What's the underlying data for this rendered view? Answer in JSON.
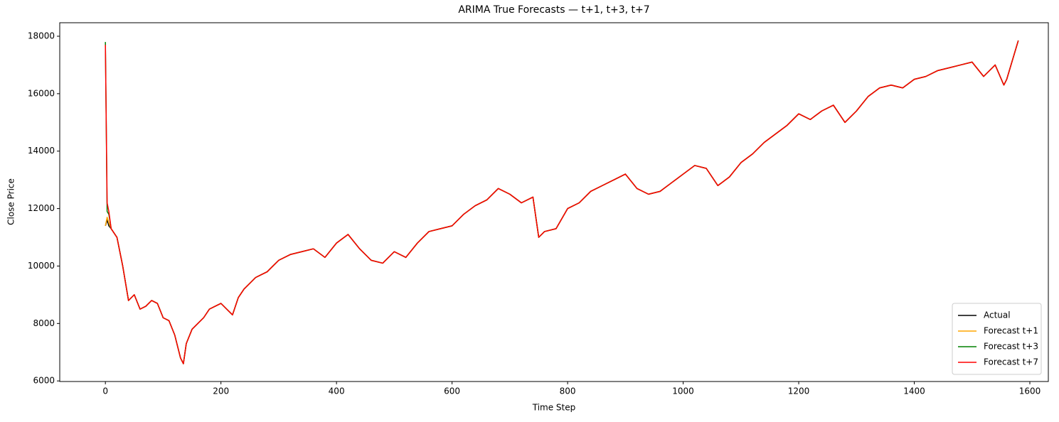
{
  "chart_data": {
    "type": "line",
    "title": "ARIMA True Forecasts — t+1, t+3, t+7",
    "x_label": "Time Step",
    "y_label": "Close Price",
    "x": [
      0,
      3,
      6,
      10,
      20,
      30,
      40,
      50,
      60,
      70,
      80,
      90,
      100,
      110,
      120,
      130,
      135,
      140,
      150,
      160,
      170,
      180,
      190,
      200,
      210,
      220,
      230,
      240,
      250,
      260,
      270,
      280,
      290,
      300,
      320,
      340,
      360,
      380,
      400,
      420,
      440,
      460,
      480,
      500,
      520,
      540,
      560,
      580,
      600,
      620,
      640,
      660,
      680,
      700,
      720,
      740,
      750,
      760,
      780,
      800,
      820,
      840,
      860,
      880,
      900,
      920,
      940,
      960,
      980,
      1000,
      1020,
      1040,
      1060,
      1080,
      1100,
      1120,
      1140,
      1160,
      1180,
      1200,
      1220,
      1240,
      1260,
      1280,
      1300,
      1320,
      1340,
      1360,
      1380,
      1400,
      1420,
      1440,
      1460,
      1480,
      1500,
      1520,
      1540,
      1555,
      1560,
      1580
    ],
    "series": [
      {
        "name": "Actual",
        "color": "#000000",
        "values": [
          11400,
          11600,
          11400,
          11300,
          11000,
          10000,
          8800,
          9000,
          8500,
          8600,
          8800,
          8700,
          8200,
          8100,
          7600,
          6800,
          6600,
          7300,
          7800,
          8000,
          8200,
          8500,
          8600,
          8700,
          8500,
          8300,
          8900,
          9200,
          9400,
          9600,
          9700,
          9800,
          10000,
          10200,
          10400,
          10500,
          10600,
          10300,
          10800,
          11100,
          10600,
          10200,
          10100,
          10500,
          10300,
          10800,
          11200,
          11300,
          11400,
          11800,
          12100,
          12300,
          12700,
          12500,
          12200,
          12400,
          11000,
          11200,
          11300,
          12000,
          12200,
          12600,
          12800,
          13000,
          13200,
          12700,
          12500,
          12600,
          12900,
          13200,
          13500,
          13400,
          12800,
          13100,
          13600,
          13900,
          14300,
          14600,
          14900,
          15300,
          15100,
          15400,
          15600,
          15000,
          15400,
          15900,
          16200,
          16300,
          16200,
          16500,
          16600,
          16800,
          16900,
          17000,
          17100,
          16600,
          17000,
          16300,
          16500,
          17850
        ]
      },
      {
        "name": "Forecast t+1",
        "color": "#ffa500",
        "values": [
          11400,
          11700,
          11500,
          11300,
          11000,
          10000,
          8800,
          9000,
          8500,
          8600,
          8800,
          8700,
          8200,
          8100,
          7600,
          6800,
          6600,
          7300,
          7800,
          8000,
          8200,
          8500,
          8600,
          8700,
          8500,
          8300,
          8900,
          9200,
          9400,
          9600,
          9700,
          9800,
          10000,
          10200,
          10400,
          10500,
          10600,
          10300,
          10800,
          11100,
          10600,
          10200,
          10100,
          10500,
          10300,
          10800,
          11200,
          11300,
          11400,
          11800,
          12100,
          12300,
          12700,
          12500,
          12200,
          12400,
          11000,
          11200,
          11300,
          12000,
          12200,
          12600,
          12800,
          13000,
          13200,
          12700,
          12500,
          12600,
          12900,
          13200,
          13500,
          13400,
          12800,
          13100,
          13600,
          13900,
          14300,
          14600,
          14900,
          15300,
          15100,
          15400,
          15600,
          15000,
          15400,
          15900,
          16200,
          16300,
          16200,
          16500,
          16600,
          16800,
          16900,
          17000,
          17100,
          16600,
          17000,
          16300,
          16500,
          17850
        ]
      },
      {
        "name": "Forecast t+3",
        "color": "#008000",
        "values": [
          17800,
          11900,
          11800,
          11300,
          11000,
          10000,
          8800,
          9000,
          8500,
          8600,
          8800,
          8700,
          8200,
          8100,
          7600,
          6800,
          6600,
          7300,
          7800,
          8000,
          8200,
          8500,
          8600,
          8700,
          8500,
          8300,
          8900,
          9200,
          9400,
          9600,
          9700,
          9800,
          10000,
          10200,
          10400,
          10500,
          10600,
          10300,
          10800,
          11100,
          10600,
          10200,
          10100,
          10500,
          10300,
          10800,
          11200,
          11300,
          11400,
          11800,
          12100,
          12300,
          12700,
          12500,
          12200,
          12400,
          11000,
          11200,
          11300,
          12000,
          12200,
          12600,
          12800,
          13000,
          13200,
          12700,
          12500,
          12600,
          12900,
          13200,
          13500,
          13400,
          12800,
          13100,
          13600,
          13900,
          14300,
          14600,
          14900,
          15300,
          15100,
          15400,
          15600,
          15000,
          15400,
          15900,
          16200,
          16300,
          16200,
          16500,
          16600,
          16800,
          16900,
          17000,
          17100,
          16600,
          17000,
          16300,
          16500,
          17850
        ]
      },
      {
        "name": "Forecast t+7",
        "color": "#ff0000",
        "values": [
          17700,
          12200,
          11900,
          11300,
          11000,
          10000,
          8800,
          9000,
          8500,
          8600,
          8800,
          8700,
          8200,
          8100,
          7600,
          6800,
          6600,
          7300,
          7800,
          8000,
          8200,
          8500,
          8600,
          8700,
          8500,
          8300,
          8900,
          9200,
          9400,
          9600,
          9700,
          9800,
          10000,
          10200,
          10400,
          10500,
          10600,
          10300,
          10800,
          11100,
          10600,
          10200,
          10100,
          10500,
          10300,
          10800,
          11200,
          11300,
          11400,
          11800,
          12100,
          12300,
          12700,
          12500,
          12200,
          12400,
          11000,
          11200,
          11300,
          12000,
          12200,
          12600,
          12800,
          13000,
          13200,
          12700,
          12500,
          12600,
          12900,
          13200,
          13500,
          13400,
          12800,
          13100,
          13600,
          13900,
          14300,
          14600,
          14900,
          15300,
          15100,
          15400,
          15600,
          15000,
          15400,
          15900,
          16200,
          16300,
          16200,
          16500,
          16600,
          16800,
          16900,
          17000,
          17100,
          16600,
          17000,
          16300,
          16500,
          17850
        ]
      }
    ],
    "xlim": [
      -79,
      1632
    ],
    "xticks": [
      0,
      200,
      400,
      600,
      800,
      1000,
      1200,
      1400,
      1600
    ],
    "ylim": [
      5980,
      18470
    ],
    "yticks": [
      6000,
      8000,
      10000,
      12000,
      14000,
      16000,
      18000
    ],
    "legend": "lower right"
  }
}
